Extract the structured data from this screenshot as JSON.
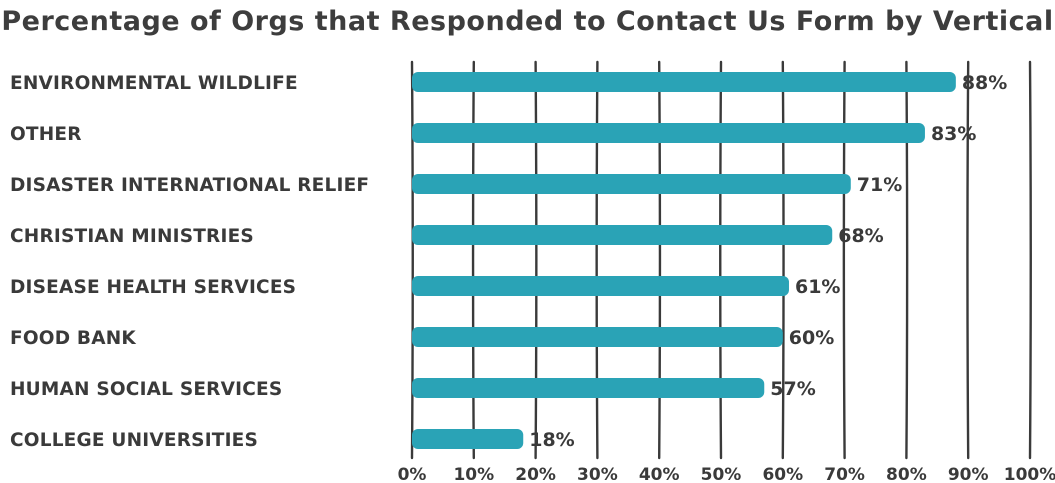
{
  "chart_data": {
    "type": "bar",
    "orientation": "horizontal",
    "title": "Percentage of Orgs that Responded to Contact Us Form by Vertical",
    "xlabel": "",
    "ylabel": "",
    "categories": [
      "ENVIRONMENTAL  WILDLIFE",
      "OTHER",
      "DISASTER  INTERNATIONAL RELIEF",
      "CHRISTIAN MINISTRIES",
      "DISEASE  HEALTH SERVICES",
      "FOOD BANK",
      "HUMAN  SOCIAL SERVICES",
      "COLLEGE  UNIVERSITIES"
    ],
    "values": [
      88,
      83,
      71,
      68,
      61,
      60,
      57,
      18
    ],
    "value_labels": [
      "88%",
      "83%",
      "71%",
      "68%",
      "61%",
      "60%",
      "57%",
      "18%"
    ],
    "xlim": [
      0,
      100
    ],
    "xticks": [
      0,
      10,
      20,
      30,
      40,
      50,
      60,
      70,
      80,
      90,
      100
    ],
    "xtick_labels": [
      "0%",
      "10%",
      "20%",
      "30%",
      "40%",
      "50%",
      "60%",
      "70%",
      "80%",
      "90%",
      "100%"
    ],
    "grid": true,
    "legend": "none",
    "bar_color": "#2aa3b6",
    "text_color": "#3a3a3a"
  }
}
